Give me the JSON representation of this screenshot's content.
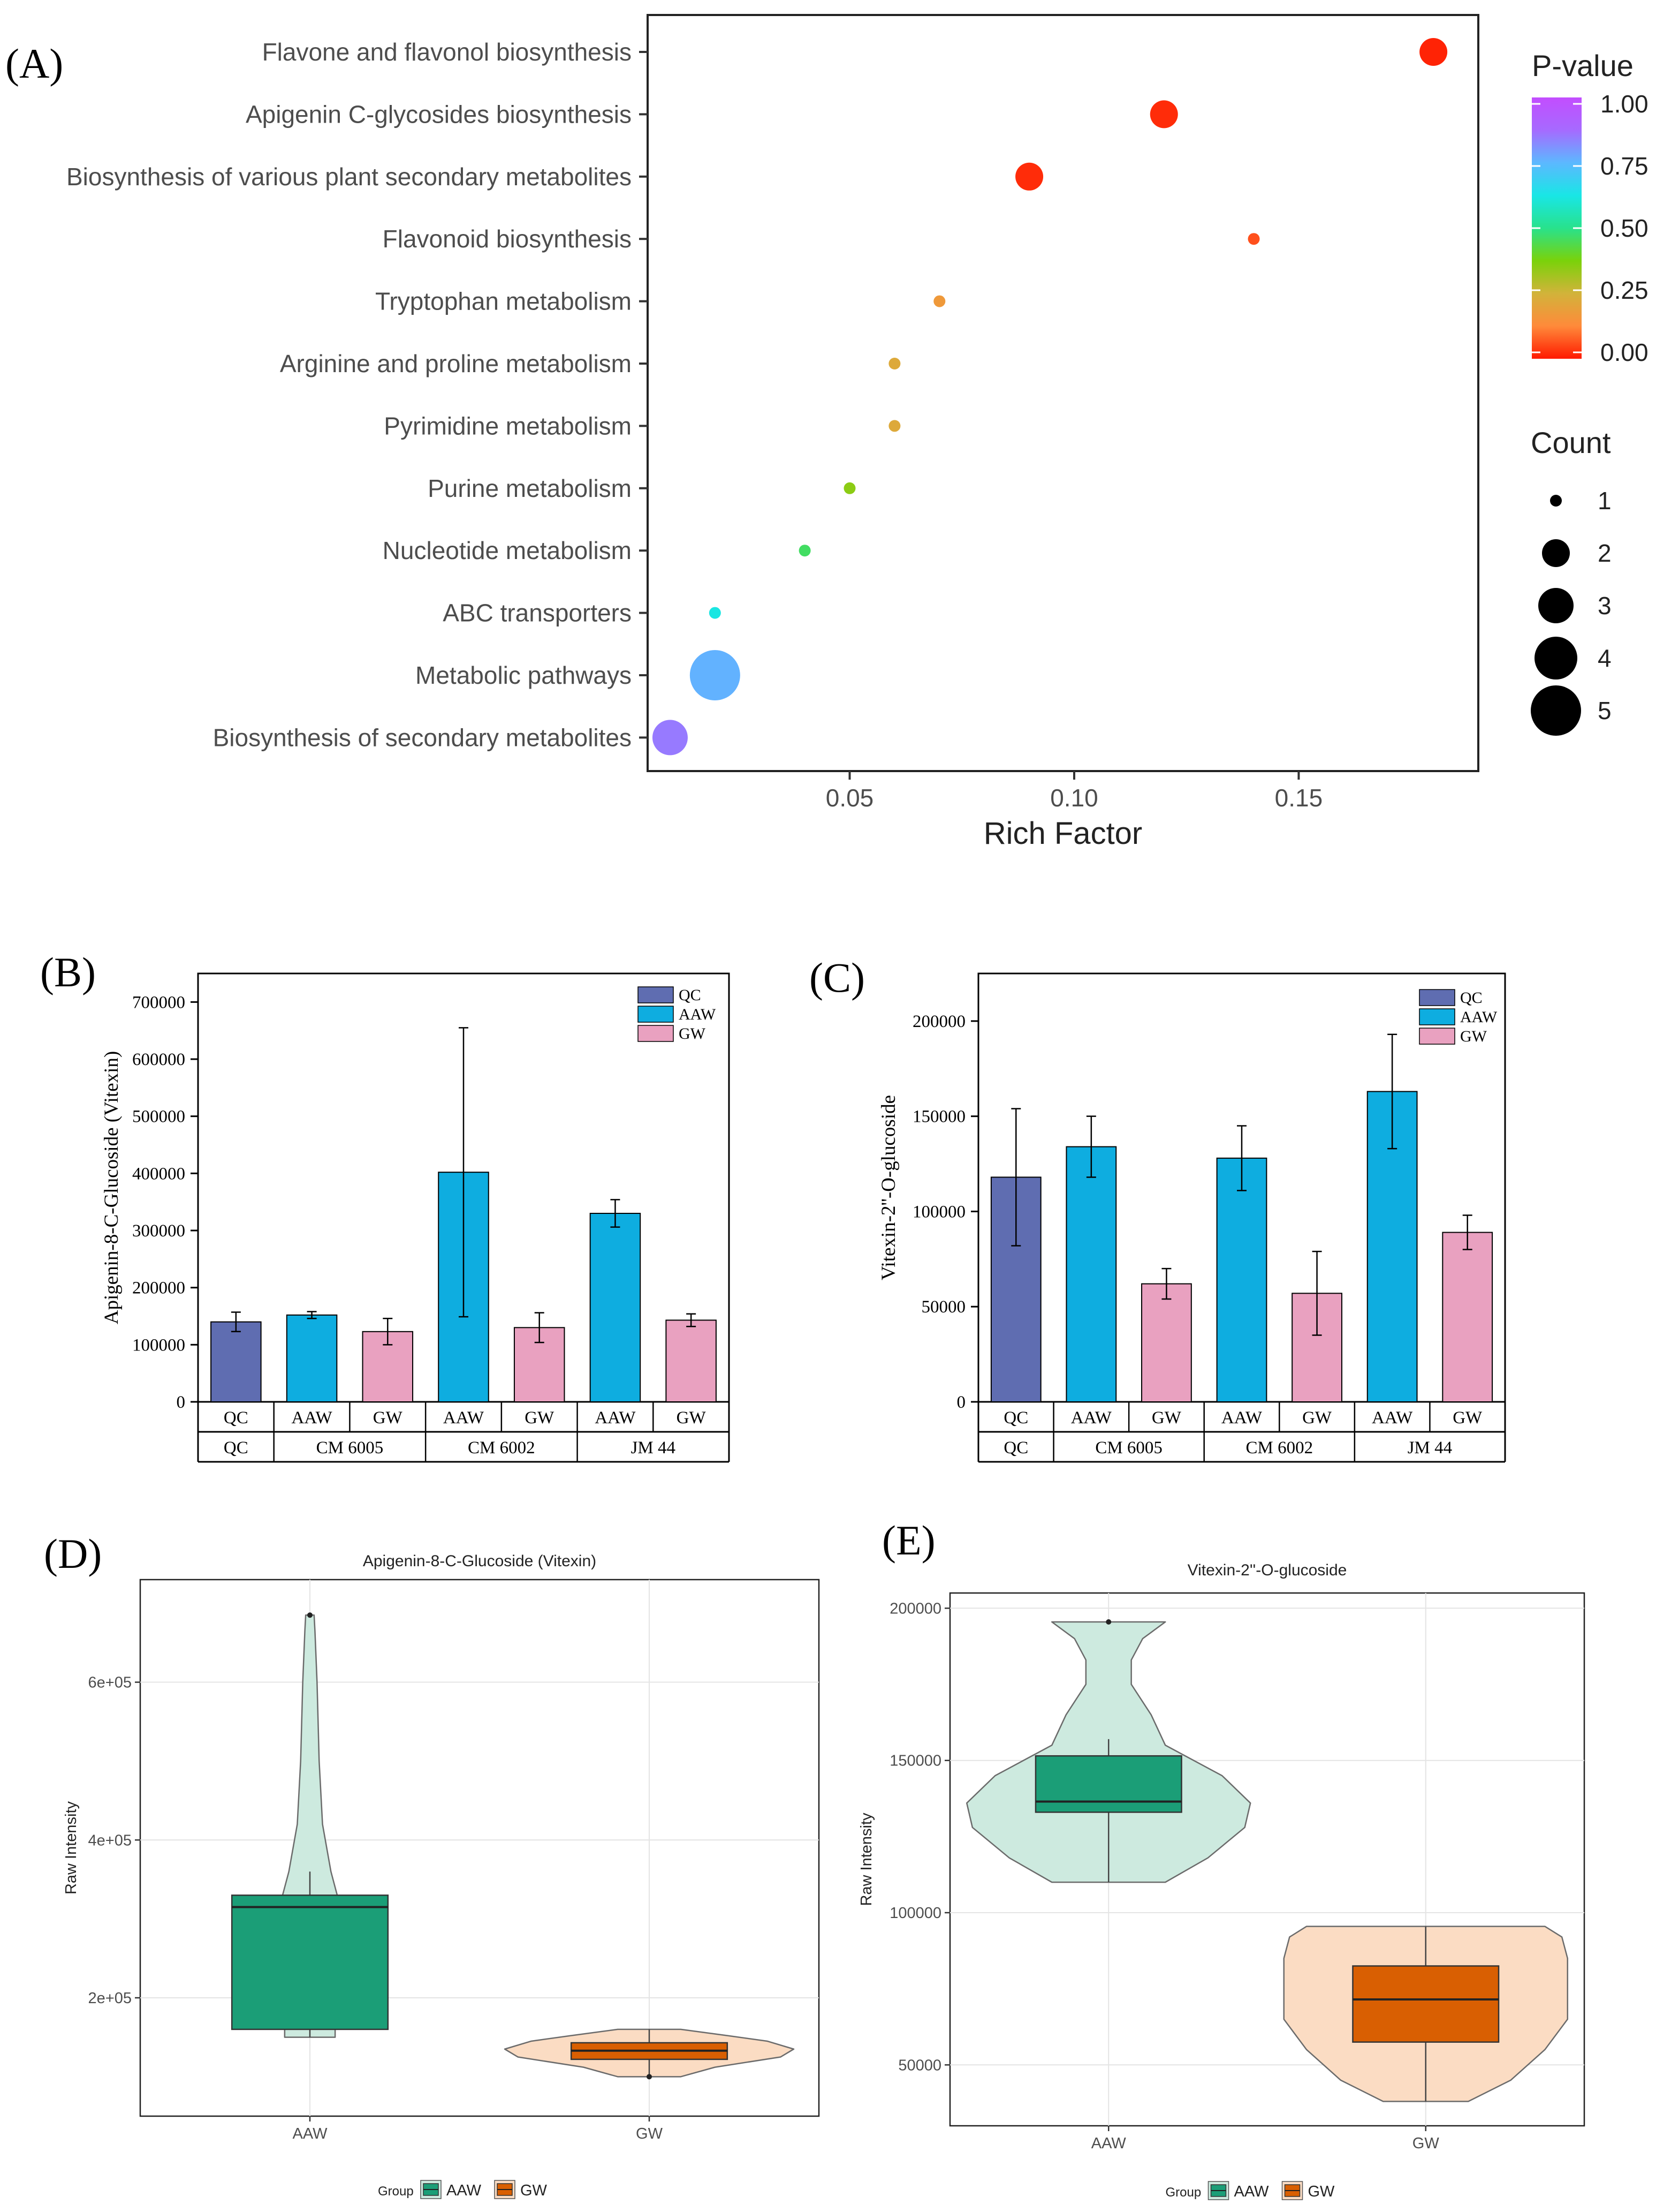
{
  "chart_data": [
    {
      "panel": "(A)",
      "type": "scatter",
      "title": "",
      "xlabel": "Rich Factor",
      "ylabel": "",
      "xlim": [
        0.005,
        0.19
      ],
      "xticks": [
        {
          "value": 0.05,
          "label": "0.05"
        },
        {
          "value": 0.1,
          "label": "0.10"
        },
        {
          "value": 0.15,
          "label": "0.15"
        }
      ],
      "categories": [
        "Flavone and flavonol biosynthesis",
        "Apigenin C-glycosides biosynthesis",
        "Biosynthesis of various plant secondary metabolites",
        "Flavonoid biosynthesis",
        "Tryptophan metabolism",
        "Arginine and proline metabolism",
        "Pyrimidine metabolism",
        "Purine metabolism",
        "Nucleotide metabolism",
        "ABC transporters",
        "Metabolic pathways",
        "Biosynthesis of secondary metabolites"
      ],
      "points": [
        {
          "pathway": "Flavone and flavonol biosynthesis",
          "rich_factor": 0.18,
          "count": 2,
          "p_value": 0.01
        },
        {
          "pathway": "Apigenin C-glycosides biosynthesis",
          "rich_factor": 0.12,
          "count": 2,
          "p_value": 0.02
        },
        {
          "pathway": "Biosynthesis of various plant secondary metabolites",
          "rich_factor": 0.09,
          "count": 2,
          "p_value": 0.02
        },
        {
          "pathway": "Flavonoid biosynthesis",
          "rich_factor": 0.14,
          "count": 1,
          "p_value": 0.06
        },
        {
          "pathway": "Tryptophan metabolism",
          "rich_factor": 0.07,
          "count": 1,
          "p_value": 0.17
        },
        {
          "pathway": "Arginine and proline metabolism",
          "rich_factor": 0.06,
          "count": 1,
          "p_value": 0.22
        },
        {
          "pathway": "Pyrimidine metabolism",
          "rich_factor": 0.06,
          "count": 1,
          "p_value": 0.22
        },
        {
          "pathway": "Purine metabolism",
          "rich_factor": 0.05,
          "count": 1,
          "p_value": 0.35
        },
        {
          "pathway": "Nucleotide metabolism",
          "rich_factor": 0.04,
          "count": 1,
          "p_value": 0.46
        },
        {
          "pathway": "ABC transporters",
          "rich_factor": 0.02,
          "count": 1,
          "p_value": 0.62
        },
        {
          "pathway": "Metabolic pathways",
          "rich_factor": 0.02,
          "count": 5,
          "p_value": 0.76
        },
        {
          "pathway": "Biosynthesis of secondary metabolites",
          "rich_factor": 0.01,
          "count": 3,
          "p_value": 0.85
        }
      ],
      "color_legend": {
        "title": "P-value",
        "ticks": [
          "1.00",
          "0.75",
          "0.50",
          "0.25",
          "0.00"
        ],
        "colors": [
          "#ff1a00",
          "#ff8a3a",
          "#d2b33a",
          "#7ad20a",
          "#28e28c",
          "#19e6e6",
          "#5cb8ff",
          "#a66aff",
          "#c34dff"
        ]
      },
      "size_legend": {
        "title": "Count",
        "items": [
          "1",
          "2",
          "3",
          "4",
          "5"
        ]
      }
    },
    {
      "panel": "(B)",
      "type": "bar",
      "ylabel": "Apigenin-8-C-Glucoside (Vitexin)",
      "ylim": [
        0,
        750000
      ],
      "yticks": [
        "0",
        "100000",
        "200000",
        "300000",
        "400000",
        "500000",
        "600000",
        "700000"
      ],
      "legend": [
        "QC",
        "AAW",
        "GW"
      ],
      "colors": {
        "QC": "#5f6db1",
        "AAW": "#0eade0",
        "GW": "#e9a1c0"
      },
      "bars": [
        {
          "group": "QC",
          "type": "QC",
          "label": "QC",
          "value": 140000,
          "err": 17000
        },
        {
          "group": "CM 6005",
          "type": "AAW",
          "label": "AAW",
          "value": 152000,
          "err": 6000
        },
        {
          "group": "CM 6005",
          "type": "GW",
          "label": "GW",
          "value": 123000,
          "err": 23000
        },
        {
          "group": "CM 6002",
          "type": "AAW",
          "label": "AAW",
          "value": 402000,
          "err": 253000
        },
        {
          "group": "CM 6002",
          "type": "GW",
          "label": "GW",
          "value": 130000,
          "err": 26000
        },
        {
          "group": "JM 44",
          "type": "AAW",
          "label": "AAW",
          "value": 330000,
          "err": 24000
        },
        {
          "group": "JM 44",
          "type": "GW",
          "label": "GW",
          "value": 143000,
          "err": 11000
        }
      ],
      "groups": [
        "QC",
        "CM 6005",
        "CM 6002",
        "JM 44"
      ]
    },
    {
      "panel": "(C)",
      "type": "bar",
      "ylabel": "Vitexin-2''-O-glucoside",
      "ylim": [
        0,
        225000
      ],
      "yticks": [
        "0",
        "50000",
        "100000",
        "150000",
        "200000"
      ],
      "legend": [
        "QC",
        "AAW",
        "GW"
      ],
      "colors": {
        "QC": "#5f6db1",
        "AAW": "#0eade0",
        "GW": "#e9a1c0"
      },
      "bars": [
        {
          "group": "QC",
          "type": "QC",
          "label": "QC",
          "value": 118000,
          "err": 36000
        },
        {
          "group": "CM 6005",
          "type": "AAW",
          "label": "AAW",
          "value": 134000,
          "err": 16000
        },
        {
          "group": "CM 6005",
          "type": "GW",
          "label": "GW",
          "value": 62000,
          "err": 8000
        },
        {
          "group": "CM 6002",
          "type": "AAW",
          "label": "AAW",
          "value": 128000,
          "err": 17000
        },
        {
          "group": "CM 6002",
          "type": "GW",
          "label": "GW",
          "value": 57000,
          "err": 22000
        },
        {
          "group": "JM 44",
          "type": "AAW",
          "label": "AAW",
          "value": 163000,
          "err": 30000
        },
        {
          "group": "JM 44",
          "type": "GW",
          "label": "GW",
          "value": 89000,
          "err": 9000
        }
      ],
      "groups": [
        "QC",
        "CM 6005",
        "CM 6002",
        "JM 44"
      ]
    },
    {
      "panel": "(D)",
      "type": "box",
      "title": "Apigenin-8-C-Glucoside (Vitexin)",
      "ylabel": "Raw Intensity",
      "xlabel": "",
      "ylim": [
        50000,
        730000
      ],
      "yticks": [
        {
          "value": 200000,
          "label": "2e+05"
        },
        {
          "value": 400000,
          "label": "4e+05"
        },
        {
          "value": 600000,
          "label": "6e+05"
        }
      ],
      "legend_title": "Group",
      "groups": [
        {
          "name": "AAW",
          "min": 150000,
          "q1": 160000,
          "median": 315000,
          "q3": 330000,
          "max": 360000,
          "outliers": [
            685000
          ],
          "fill": "#1b9e77",
          "violin_fill": "#cdeadf",
          "density": [
            [
              150000,
              0.06
            ],
            [
              200000,
              0.06
            ],
            [
              260000,
              0.06
            ],
            [
              320000,
              0.07
            ],
            [
              360000,
              0.05
            ],
            [
              420000,
              0.03
            ],
            [
              500000,
              0.022
            ],
            [
              600000,
              0.017
            ],
            [
              665000,
              0.012
            ],
            [
              685000,
              0.01
            ]
          ]
        },
        {
          "name": "GW",
          "min": 100000,
          "q1": 122000,
          "median": 133000,
          "q3": 143000,
          "max": 160000,
          "outliers": [
            100000
          ],
          "fill": "#d95f02",
          "violin_fill": "#fbdcc3",
          "density": [
            [
              100000,
              0.12
            ],
            [
              112000,
              0.25
            ],
            [
              125000,
              0.5
            ],
            [
              135000,
              0.55
            ],
            [
              145000,
              0.45
            ],
            [
              152000,
              0.3
            ],
            [
              160000,
              0.12
            ]
          ]
        }
      ]
    },
    {
      "panel": "(E)",
      "type": "box",
      "title": "Vitexin-2''-O-glucoside",
      "ylabel": "Raw Intensity",
      "xlabel": "",
      "ylim": [
        30000,
        205000
      ],
      "yticks": [
        {
          "value": 50000,
          "label": "50000"
        },
        {
          "value": 100000,
          "label": "100000"
        },
        {
          "value": 150000,
          "label": "150000"
        },
        {
          "value": 200000,
          "label": "200000"
        }
      ],
      "legend_title": "Group",
      "groups": [
        {
          "name": "AAW",
          "min": 110000,
          "q1": 133000,
          "median": 136500,
          "q3": 151500,
          "max": 157000,
          "outliers": [
            195500
          ],
          "fill": "#1b9e77",
          "violin_fill": "#cdeadf",
          "density": [
            [
              110000,
              0.2
            ],
            [
              118000,
              0.35
            ],
            [
              128000,
              0.48
            ],
            [
              136000,
              0.5
            ],
            [
              145000,
              0.4
            ],
            [
              155000,
              0.2
            ],
            [
              165000,
              0.15
            ],
            [
              175000,
              0.08
            ],
            [
              183000,
              0.08
            ],
            [
              190000,
              0.12
            ],
            [
              195500,
              0.2
            ]
          ]
        },
        {
          "name": "GW",
          "min": 38000,
          "q1": 57500,
          "median": 71500,
          "q3": 82500,
          "max": 95500,
          "outliers": [],
          "fill": "#d95f02",
          "violin_fill": "#fbdcc3",
          "density": [
            [
              38000,
              0.15
            ],
            [
              45000,
              0.3
            ],
            [
              55000,
              0.42
            ],
            [
              65000,
              0.5
            ],
            [
              75000,
              0.5
            ],
            [
              85000,
              0.5
            ],
            [
              92000,
              0.48
            ],
            [
              95500,
              0.42
            ]
          ]
        }
      ]
    }
  ]
}
